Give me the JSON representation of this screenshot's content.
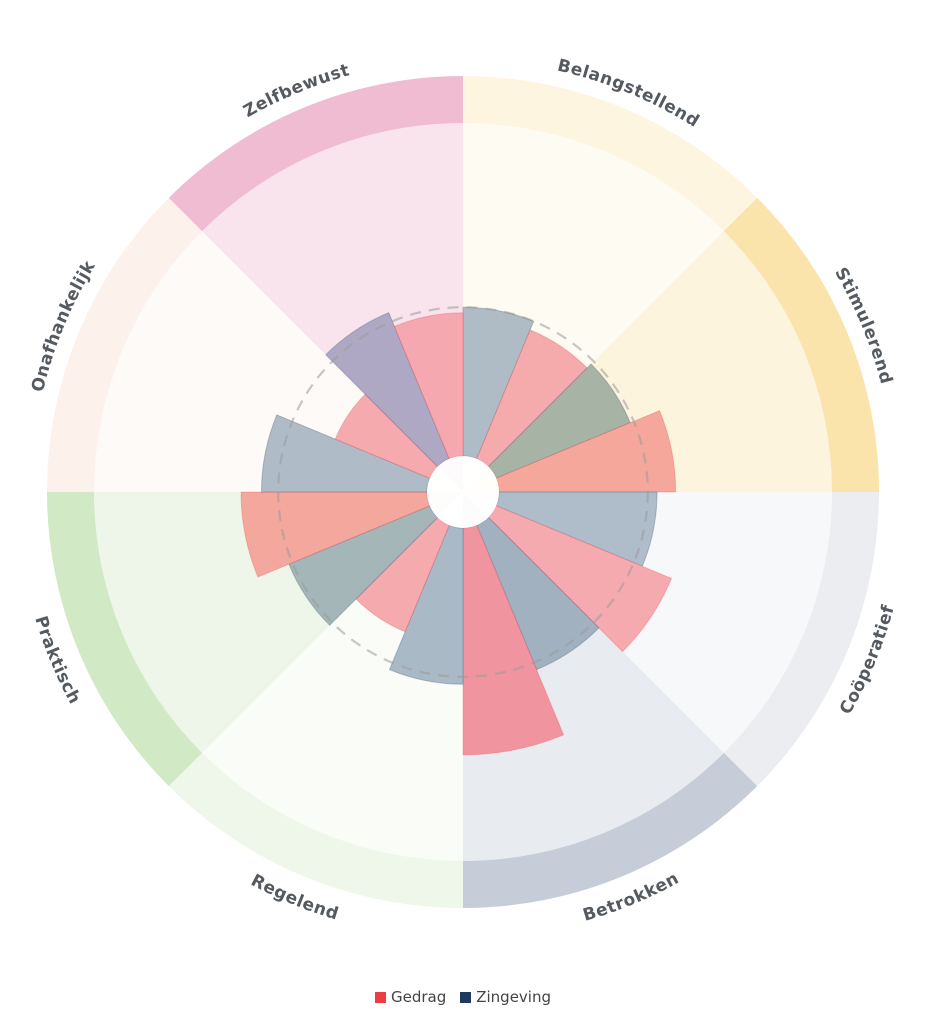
{
  "chart_data": {
    "type": "polar-area",
    "segments": [
      {
        "name": "Belangstellend",
        "color": "#f7c75a",
        "outer_opacity": 0.18,
        "inner_opacity": 0.07
      },
      {
        "name": "Stimulerend",
        "color": "#f7c75a",
        "outer_opacity": 0.5,
        "inner_opacity": 0.2
      },
      {
        "name": "Coöperatief",
        "color": "#8e9bb3",
        "outer_opacity": 0.18,
        "inner_opacity": 0.07
      },
      {
        "name": "Betrokken",
        "color": "#8e9bb3",
        "outer_opacity": 0.5,
        "inner_opacity": 0.2
      },
      {
        "name": "Regelend",
        "color": "#a6d48c",
        "outer_opacity": 0.18,
        "inner_opacity": 0.07
      },
      {
        "name": "Praktisch",
        "color": "#a6d48c",
        "outer_opacity": 0.5,
        "inner_opacity": 0.2
      },
      {
        "name": "Onafhankelijk",
        "color": "#f4b48e",
        "outer_opacity": 0.18,
        "inner_opacity": 0.07
      },
      {
        "name": "Zelfbewust",
        "color": "#e07aa6",
        "outer_opacity": 0.5,
        "inner_opacity": 0.2
      }
    ],
    "series": [
      {
        "name": "Gedrag",
        "color": "#ee3b44"
      },
      {
        "name": "Zingeving",
        "color": "#1f3a5f"
      }
    ],
    "bars": [
      {
        "series": "Zingeving",
        "value": 0.8,
        "tint": "#a8b6c2"
      },
      {
        "series": "Gedrag",
        "value": 0.75,
        "tint": "#f4a3a6"
      },
      {
        "series": "Zingeving",
        "value": 0.78,
        "tint": "#9fae9f"
      },
      {
        "series": "Gedrag",
        "value": 0.95,
        "tint": "#f4a095"
      },
      {
        "series": "Zingeving",
        "value": 0.85,
        "tint": "#a8b6c4"
      },
      {
        "series": "Gedrag",
        "value": 1.02,
        "tint": "#f4a3a8"
      },
      {
        "series": "Zingeving",
        "value": 0.84,
        "tint": "#9aabbc"
      },
      {
        "series": "Gedrag",
        "value": 1.22,
        "tint": "#f08d99"
      },
      {
        "series": "Zingeving",
        "value": 0.84,
        "tint": "#a3b3c1"
      },
      {
        "series": "Gedrag",
        "value": 0.62,
        "tint": "#f4a3a6"
      },
      {
        "series": "Zingeving",
        "value": 0.82,
        "tint": "#9eb0b3"
      },
      {
        "series": "Gedrag",
        "value": 1.0,
        "tint": "#f3a096"
      },
      {
        "series": "Zingeving",
        "value": 0.89,
        "tint": "#a8b6c2"
      },
      {
        "series": "Gedrag",
        "value": 0.55,
        "tint": "#f4a3a6"
      },
      {
        "series": "Zingeving",
        "value": 0.85,
        "tint": "#a8a3c0"
      },
      {
        "series": "Gedrag",
        "value": 0.77,
        "tint": "#f4a3aa"
      }
    ],
    "reference_value": 0.8
  }
}
